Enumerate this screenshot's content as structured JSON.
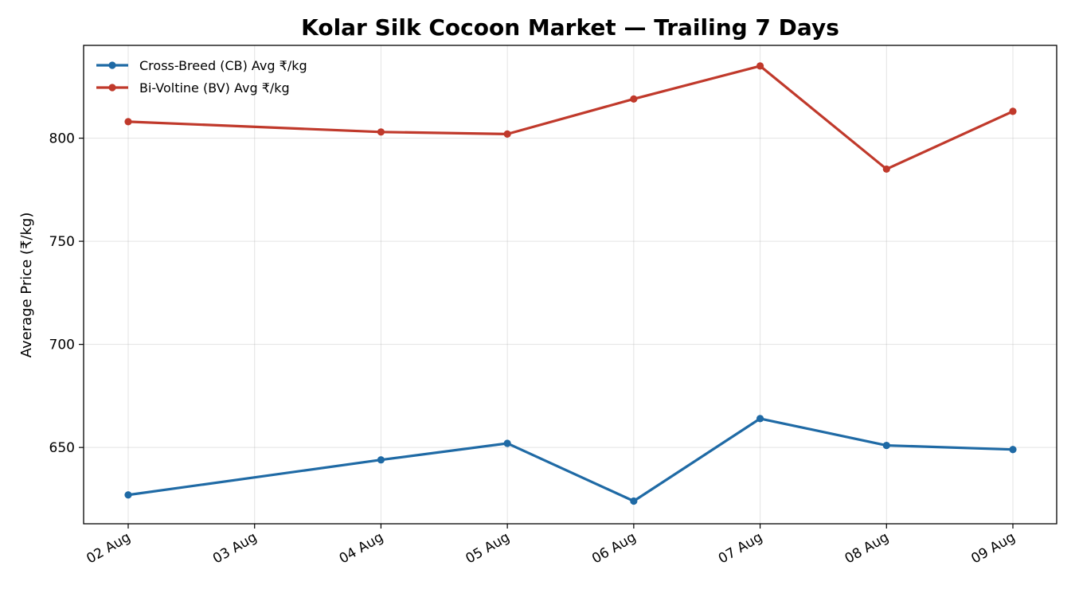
{
  "chart_data": {
    "type": "line",
    "title": "Kolar Silk Cocoon Market — Trailing 7 Days",
    "xlabel": "",
    "ylabel": "Average Price (₹/kg)",
    "x_ticks": [
      "02 Aug",
      "03 Aug",
      "04 Aug",
      "05 Aug",
      "06 Aug",
      "07 Aug",
      "08 Aug",
      "09 Aug"
    ],
    "ylim": [
      613,
      845
    ],
    "y_ticks": [
      650,
      700,
      750,
      800
    ],
    "grid": true,
    "legend_position": "top-left",
    "series": [
      {
        "name": "Cross-Breed (CB) Avg ₹/kg",
        "color": "#1f6aa5",
        "x": [
          "02 Aug",
          "04 Aug",
          "05 Aug",
          "06 Aug",
          "07 Aug",
          "08 Aug",
          "09 Aug"
        ],
        "values": [
          627,
          644,
          652,
          624,
          664,
          651,
          649
        ]
      },
      {
        "name": "Bi-Voltine (BV) Avg ₹/kg",
        "color": "#c0392b",
        "x": [
          "02 Aug",
          "04 Aug",
          "05 Aug",
          "06 Aug",
          "07 Aug",
          "08 Aug",
          "09 Aug"
        ],
        "values": [
          808,
          803,
          802,
          819,
          835,
          785,
          813
        ]
      }
    ]
  }
}
